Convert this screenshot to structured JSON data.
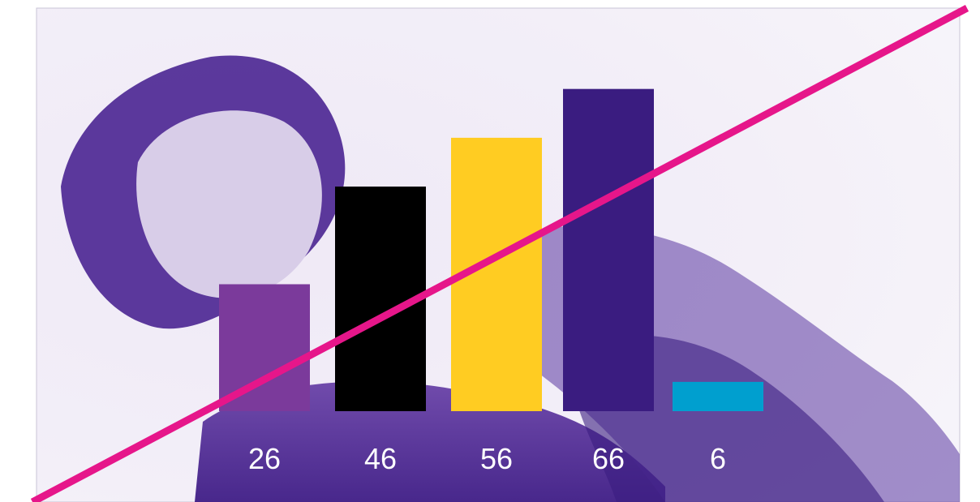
{
  "chart_data": {
    "type": "bar",
    "values": [
      26,
      46,
      56,
      66,
      6
    ],
    "colors": [
      "#7b3a9b",
      "#000000",
      "#ffcc22",
      "#3a1c80",
      "#009fcf"
    ]
  }
}
